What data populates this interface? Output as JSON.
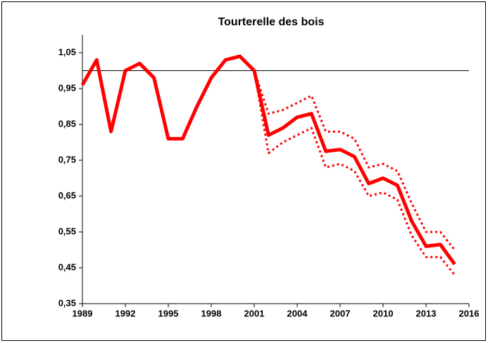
{
  "chart_data": {
    "type": "line",
    "title": "Tourterelle des bois",
    "x": [
      1989,
      1990,
      1991,
      1992,
      1993,
      1994,
      1995,
      1996,
      1997,
      1998,
      1999,
      2000,
      2001,
      2002,
      2003,
      2004,
      2005,
      2006,
      2007,
      2008,
      2009,
      2010,
      2011,
      2012,
      2013,
      2014,
      2015
    ],
    "series": [
      {
        "color": "#ff0000",
        "style": "solid",
        "values": [
          0.96,
          1.03,
          0.83,
          1.0,
          1.02,
          0.98,
          0.81,
          0.81,
          0.9,
          0.98,
          1.03,
          1.04,
          1.0,
          0.82,
          0.84,
          0.87,
          0.88,
          0.775,
          0.78,
          0.76,
          0.685,
          0.7,
          0.68,
          0.58,
          0.51,
          0.515,
          0.46
        ]
      },
      {
        "color": "#ff0000",
        "style": "dotted",
        "values": [
          null,
          null,
          null,
          null,
          null,
          null,
          null,
          null,
          null,
          null,
          null,
          null,
          1.0,
          0.88,
          0.89,
          0.91,
          0.93,
          0.83,
          0.83,
          0.81,
          0.73,
          0.74,
          0.72,
          0.63,
          0.55,
          0.55,
          0.5
        ]
      },
      {
        "color": "#ff0000",
        "style": "dotted",
        "values": [
          null,
          null,
          null,
          null,
          null,
          null,
          null,
          null,
          null,
          null,
          null,
          null,
          1.0,
          0.77,
          0.8,
          0.82,
          0.84,
          0.73,
          0.74,
          0.72,
          0.65,
          0.66,
          0.64,
          0.54,
          0.48,
          0.48,
          0.43
        ]
      }
    ],
    "reference_line": 1,
    "xlim": [
      1989,
      2016
    ],
    "xticks": [
      1989,
      1992,
      1995,
      1998,
      2001,
      2004,
      2007,
      2010,
      2013,
      2016
    ],
    "ylim": [
      0.35,
      1.1
    ],
    "yticks": [
      {
        "value": 0.35,
        "label": "0,35"
      },
      {
        "value": 0.45,
        "label": "0,45"
      },
      {
        "value": 0.55,
        "label": "0,55"
      },
      {
        "value": 0.65,
        "label": "0,65"
      },
      {
        "value": 0.75,
        "label": "0,75"
      },
      {
        "value": 0.85,
        "label": "0,85"
      },
      {
        "value": 0.95,
        "label": "0,95"
      },
      {
        "value": 1.05,
        "label": "1,05"
      }
    ],
    "grid": false
  }
}
